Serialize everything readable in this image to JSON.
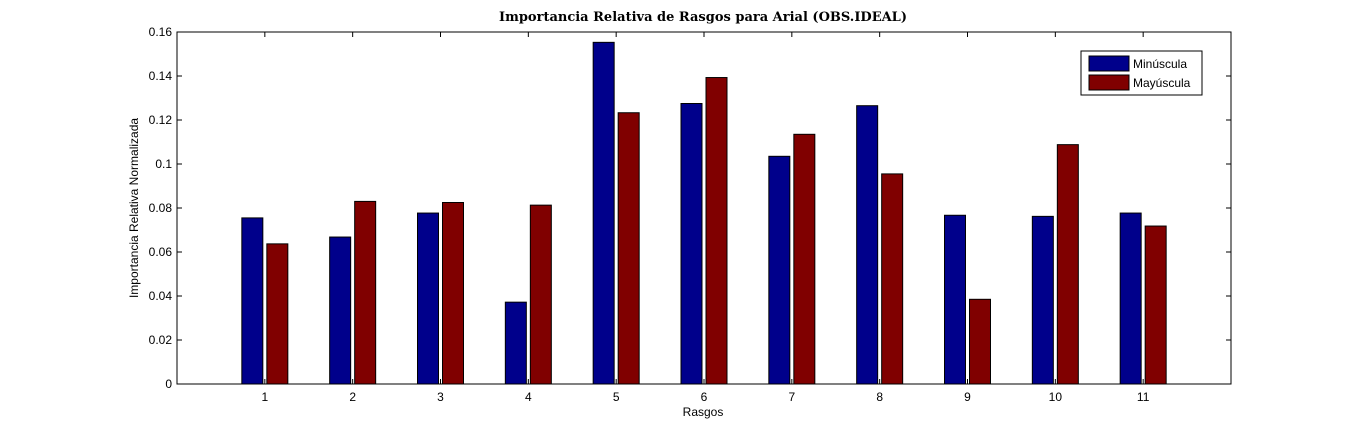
{
  "chart_data": {
    "type": "bar",
    "title": "Importancia Relativa de Rasgos para Arial (OBS.IDEAL)",
    "xlabel": "Rasgos",
    "ylabel": "Importancia Relativa Normalizada",
    "categories": [
      "1",
      "2",
      "3",
      "4",
      "5",
      "6",
      "7",
      "8",
      "9",
      "10",
      "11"
    ],
    "xlim": [
      0,
      12
    ],
    "ylim": [
      0,
      0.16
    ],
    "yticks": [
      0,
      0.02,
      0.04,
      0.06,
      0.08,
      0.1,
      0.12,
      0.14,
      0.16
    ],
    "ytick_labels": [
      "0",
      "0.02",
      "0.04",
      "0.06",
      "0.08",
      "0.1",
      "0.12",
      "0.14",
      "0.16"
    ],
    "grid": false,
    "legend_position": "top-right",
    "series": [
      {
        "name": "Minúscula",
        "color": "#00008B",
        "values": [
          0.0755,
          0.0668,
          0.0777,
          0.0372,
          0.1553,
          0.1275,
          0.1035,
          0.1265,
          0.0767,
          0.0762,
          0.0777
        ]
      },
      {
        "name": "Mayúscula",
        "color": "#800000",
        "values": [
          0.0637,
          0.083,
          0.0825,
          0.0813,
          0.1233,
          0.1393,
          0.1135,
          0.0955,
          0.0385,
          0.1088,
          0.0718
        ]
      }
    ]
  }
}
